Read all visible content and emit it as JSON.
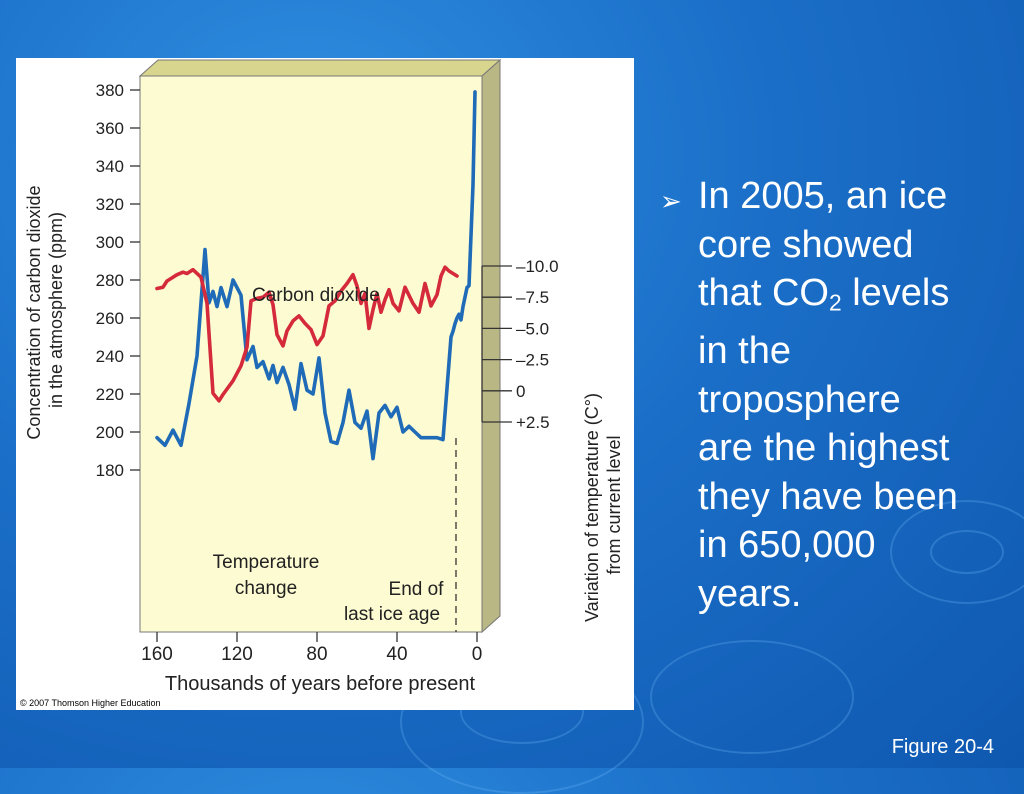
{
  "slide": {
    "bullet_lines": [
      "In 2005, an ice",
      "core showed",
      "that CO",
      "2",
      " levels",
      "in the",
      "troposphere",
      "are the highest",
      "they have been",
      "in 650,000",
      "years."
    ],
    "figure_label": "Figure 20-4",
    "copyright": "© 2007 Thomson Higher Education"
  },
  "chart_data": {
    "type": "line",
    "xlabel": "Thousands of years before present",
    "ylabel_left": "Concentration of carbon dioxide in the atmosphere (ppm)",
    "ylabel_right": "Variation of temperature (C°) from current level",
    "x_ticks": [
      "160",
      "120",
      "80",
      "40",
      "0"
    ],
    "x_tick_values": [
      160,
      120,
      80,
      40,
      0
    ],
    "xlim": [
      160,
      0
    ],
    "y_left_ticks": [
      "380",
      "360",
      "340",
      "320",
      "300",
      "280",
      "260",
      "240",
      "220",
      "200",
      "180"
    ],
    "y_left_tick_values": [
      380,
      360,
      340,
      320,
      300,
      280,
      260,
      240,
      220,
      200,
      180
    ],
    "ylim_left": [
      180,
      380
    ],
    "y_right_ticks": [
      "+2.5",
      "0",
      "–2.5",
      "–5.0",
      "–7.5",
      "–10.0"
    ],
    "y_right_tick_values": [
      2.5,
      0,
      -2.5,
      -5.0,
      -7.5,
      -10.0
    ],
    "ylim_right": [
      -10,
      2.5
    ],
    "annotations": {
      "co2_label": "Carbon dioxide",
      "temp_label_1": "Temperature",
      "temp_label_2": "change",
      "ice_label_1": "End of",
      "ice_label_2": "last ice age"
    },
    "series": [
      {
        "name": "Carbon dioxide",
        "axis": "left",
        "color": "#1f6bb8",
        "x": [
          160,
          156,
          152,
          148,
          144,
          140,
          136,
          134,
          132,
          130,
          128,
          125,
          122,
          118,
          115,
          112,
          110,
          107,
          104,
          102,
          100,
          97,
          94,
          91,
          88,
          85,
          82,
          79,
          76,
          73,
          70,
          67,
          64,
          61,
          58,
          55,
          52,
          49,
          46,
          43,
          40,
          37,
          34,
          31,
          28,
          26,
          24,
          22,
          20,
          17,
          13,
          12,
          11,
          10,
          9,
          8,
          7,
          5,
          4,
          2,
          1
        ],
        "y": [
          197,
          193,
          201,
          193,
          215,
          240,
          296,
          268,
          274,
          266,
          276,
          266,
          280,
          272,
          238,
          245,
          234,
          237,
          228,
          235,
          226,
          234,
          225,
          212,
          236,
          222,
          220,
          239,
          210,
          195,
          194,
          205,
          222,
          205,
          202,
          211,
          186,
          210,
          214,
          208,
          213,
          200,
          203,
          200,
          197,
          197,
          197,
          197,
          197,
          196,
          250,
          253,
          257,
          260,
          262,
          259,
          266,
          276,
          277,
          330,
          379
        ]
      },
      {
        "name": "Temperature change",
        "axis": "right",
        "color": "#d42a3c",
        "x": [
          160,
          157,
          155,
          153,
          150,
          147,
          145,
          142,
          138,
          135,
          132,
          129,
          127,
          122,
          118,
          115,
          113,
          110,
          107,
          104,
          102,
          100,
          97,
          95,
          92,
          89,
          86,
          83,
          80,
          77,
          74,
          71,
          68,
          65,
          62,
          60,
          58,
          56,
          54,
          52,
          50,
          48,
          46,
          44,
          42,
          39,
          36,
          32,
          29,
          26,
          23,
          20,
          18,
          16,
          14,
          12,
          10
        ],
        "y": [
          -8.2,
          -8.3,
          -8.8,
          -9.0,
          -9.3,
          -9.5,
          -9.4,
          -9.7,
          -9.1,
          -7.0,
          0.2,
          0.8,
          0.3,
          -0.8,
          -2.0,
          -3.5,
          -7.2,
          -7.4,
          -7.5,
          -7.9,
          -6.9,
          -4.5,
          -3.6,
          -4.8,
          -5.6,
          -6.0,
          -5.4,
          -4.9,
          -3.7,
          -4.4,
          -6.8,
          -7.2,
          -8.0,
          -8.6,
          -9.3,
          -8.4,
          -7.0,
          -7.8,
          -5.0,
          -6.5,
          -7.8,
          -6.3,
          -7.3,
          -8.1,
          -7.0,
          -6.4,
          -8.3,
          -7.0,
          -6.3,
          -8.6,
          -6.8,
          -7.7,
          -9.2,
          -9.9,
          -9.6,
          -9.4,
          -9.2
        ]
      }
    ],
    "ice_age_marker_x": 10,
    "grid": false,
    "legend": "none"
  }
}
